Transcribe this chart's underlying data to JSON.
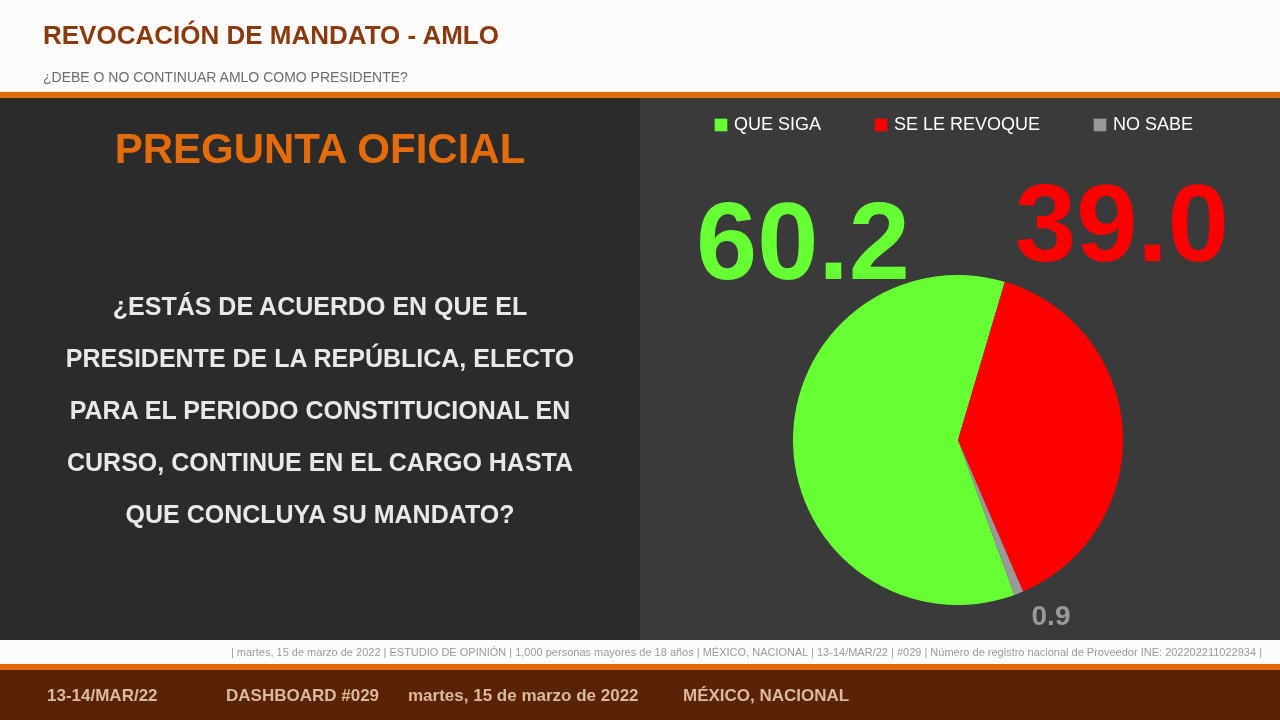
{
  "chart_data": [
    {
      "type": "other",
      "title": "REVOCACIÓN DE MANDATO - AMLO",
      "subtitle": "¿DEBE O NO CONTINUAR AMLO COMO PRESIDENTE?"
    },
    {
      "type": "other",
      "title": "PREGUNTA OFICIAL",
      "annotations": [
        "¿ESTÁS DE ACUERDO EN QUE EL PRESIDENTE DE LA REPÚBLICA, ELECTO PARA EL PERIODO CONSTITUCIONAL EN CURSO, CONTINUE EN EL CARGO HASTA QUE CONCLUYA SU MANDATO?"
      ]
    },
    {
      "type": "pie",
      "categories": [
        "QUE SIGA",
        "SE LE REVOQUE",
        "NO SABE"
      ],
      "values": [
        60.2,
        39.0,
        0.9
      ],
      "value_labels": [
        "60.2",
        "39.0",
        "0.9"
      ],
      "colors": [
        "#66ff33",
        "#ff0000",
        "#999999"
      ],
      "legend": "top"
    },
    {
      "type": "other",
      "annotations": [
        "| martes, 15 de marzo de 2022 | ESTUDIO DE OPINIÓN | 1,000 personas mayores de 18 años | MÉXICO, NACIONAL | 13-14/MAR/22 | #029 | Número de registro nacional de Proveedor INE: 202202211022934 |",
        "13-14/MAR/22",
        "DASHBOARD #029",
        "martes, 15 de marzo de 2022",
        "MÉXICO, NACIONAL"
      ]
    }
  ]
}
